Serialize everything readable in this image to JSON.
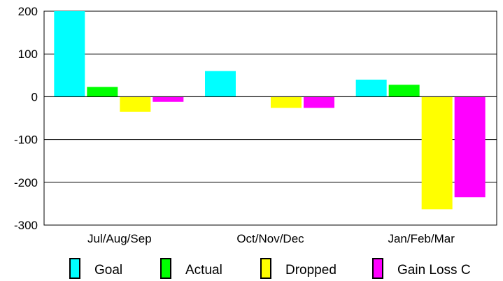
{
  "chart_data": {
    "type": "bar",
    "categories": [
      "Jul/Aug/Sep",
      "Oct/Nov/Dec",
      "Jan/Feb/Mar"
    ],
    "series": [
      {
        "name": "Goal",
        "values": [
          200,
          60,
          40
        ],
        "color": "#00FFFF"
      },
      {
        "name": "Actual",
        "values": [
          23,
          0,
          28
        ],
        "color": "#00FF00"
      },
      {
        "name": "Dropped",
        "values": [
          -35,
          -26,
          -263
        ],
        "color": "#FFFF00"
      },
      {
        "name": "Gain Loss C",
        "values": [
          -12,
          -26,
          -235
        ],
        "color": "#FF00FF"
      }
    ],
    "ylim": [
      -300,
      200
    ],
    "yticks": [
      "200",
      "100",
      "0",
      "-100",
      "-200",
      "-300"
    ],
    "grid": true,
    "legend_position": "bottom"
  }
}
